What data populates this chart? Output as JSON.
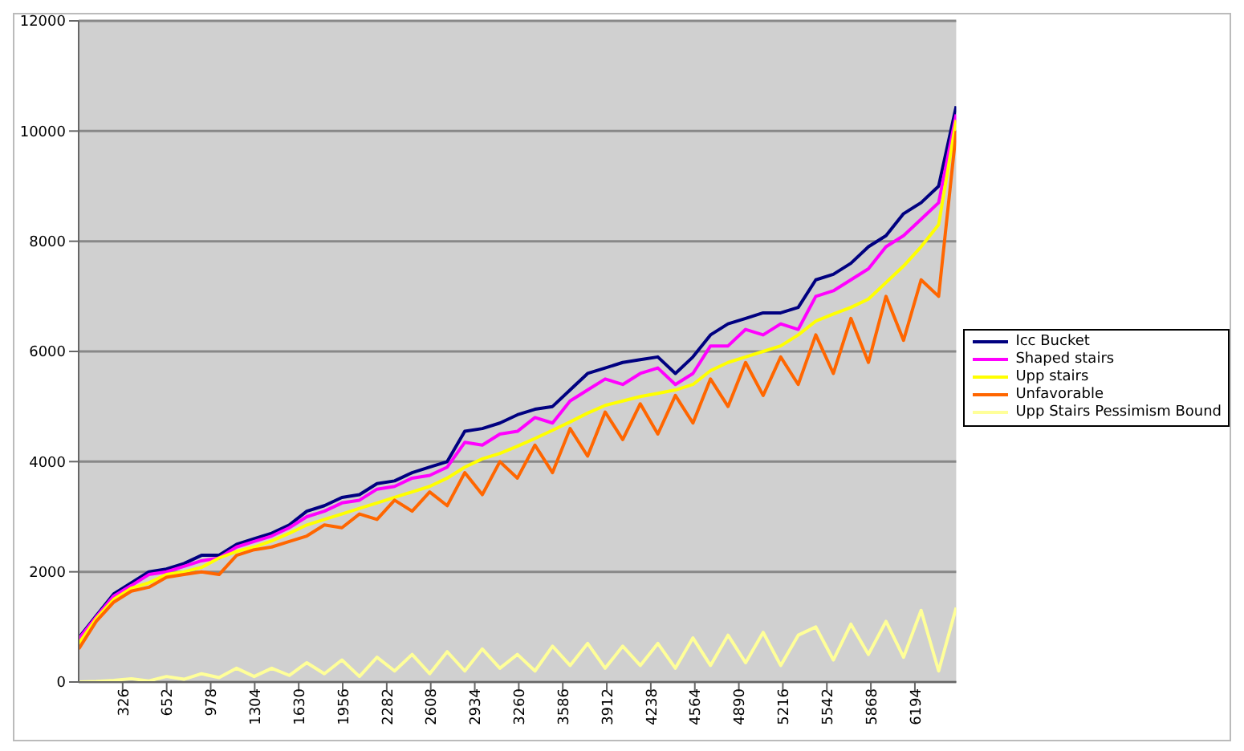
{
  "chart_data": {
    "type": "line",
    "x": [
      1,
      130,
      260,
      390,
      520,
      650,
      780,
      910,
      1040,
      1170,
      1300,
      1430,
      1560,
      1690,
      1820,
      1950,
      2080,
      2210,
      2340,
      2470,
      2600,
      2730,
      2860,
      2990,
      3120,
      3250,
      3380,
      3510,
      3640,
      3770,
      3900,
      4030,
      4160,
      4290,
      4420,
      4550,
      4680,
      4810,
      4940,
      5070,
      5200,
      5330,
      5460,
      5590,
      5720,
      5850,
      5980,
      6110,
      6240,
      6370,
      6500
    ],
    "series": [
      {
        "name": "Icc Bucket",
        "color": "#000080",
        "values": [
          800,
          1200,
          1600,
          1800,
          2000,
          2050,
          2150,
          2300,
          2300,
          2500,
          2600,
          2700,
          2850,
          3100,
          3200,
          3350,
          3400,
          3600,
          3650,
          3800,
          3900,
          4000,
          4550,
          4600,
          4700,
          4850,
          4950,
          5000,
          5300,
          5600,
          5700,
          5800,
          5850,
          5900,
          5600,
          5900,
          6300,
          6500,
          6600,
          6700,
          6700,
          6800,
          7300,
          7400,
          7600,
          7900,
          8100,
          8500,
          8700,
          9000,
          10450
        ]
      },
      {
        "name": "Shaped stairs",
        "color": "#ff00ff",
        "values": [
          780,
          1180,
          1560,
          1750,
          1950,
          2000,
          2100,
          2200,
          2250,
          2450,
          2550,
          2650,
          2800,
          3000,
          3100,
          3250,
          3300,
          3500,
          3550,
          3700,
          3750,
          3900,
          4350,
          4300,
          4500,
          4550,
          4800,
          4700,
          5100,
          5300,
          5500,
          5400,
          5600,
          5700,
          5400,
          5600,
          6100,
          6100,
          6400,
          6300,
          6500,
          6400,
          7000,
          7100,
          7300,
          7500,
          7900,
          8100,
          8400,
          8700,
          10300
        ]
      },
      {
        "name": "Upp stairs",
        "color": "#ffff00",
        "values": [
          700,
          1150,
          1500,
          1700,
          1800,
          1950,
          2000,
          2080,
          2250,
          2370,
          2450,
          2560,
          2700,
          2850,
          2950,
          3050,
          3150,
          3250,
          3350,
          3450,
          3550,
          3700,
          3900,
          4050,
          4150,
          4280,
          4420,
          4570,
          4720,
          4880,
          5020,
          5100,
          5180,
          5240,
          5300,
          5400,
          5650,
          5800,
          5900,
          6000,
          6100,
          6300,
          6550,
          6680,
          6800,
          6950,
          7250,
          7550,
          7900,
          8300,
          10200
        ]
      },
      {
        "name": "Unfavorable",
        "color": "#ff6600",
        "values": [
          600,
          1100,
          1450,
          1650,
          1720,
          1900,
          1950,
          2000,
          1950,
          2300,
          2400,
          2450,
          2550,
          2650,
          2850,
          2800,
          3050,
          2950,
          3300,
          3100,
          3450,
          3200,
          3800,
          3400,
          4000,
          3700,
          4300,
          3800,
          4600,
          4100,
          4900,
          4400,
          5050,
          4500,
          5200,
          4700,
          5500,
          5000,
          5800,
          5200,
          5900,
          5400,
          6300,
          5600,
          6600,
          5800,
          7000,
          6200,
          7300,
          7000,
          10000
        ]
      },
      {
        "name": "Upp Stairs Pessimism Bound",
        "color": "#ffff99",
        "values": [
          0,
          10,
          30,
          60,
          20,
          100,
          50,
          150,
          80,
          250,
          100,
          250,
          120,
          350,
          150,
          400,
          100,
          450,
          200,
          500,
          150,
          550,
          200,
          600,
          250,
          500,
          200,
          650,
          300,
          700,
          250,
          650,
          300,
          700,
          250,
          800,
          300,
          850,
          350,
          900,
          300,
          850,
          1000,
          400,
          1050,
          500,
          1100,
          450,
          1300,
          200,
          1350
        ]
      }
    ],
    "xlim": [
      0,
      6500
    ],
    "xticks": [
      326,
      652,
      978,
      1304,
      1630,
      1956,
      2282,
      2608,
      2934,
      3260,
      3586,
      3912,
      4238,
      4564,
      4890,
      5216,
      5542,
      5868,
      6194
    ],
    "ylim": [
      0,
      12000
    ],
    "yticks": [
      0,
      2000,
      4000,
      6000,
      8000,
      10000,
      12000
    ],
    "grid": "y",
    "legend": "right",
    "marker": "none",
    "line_style": "solid"
  }
}
